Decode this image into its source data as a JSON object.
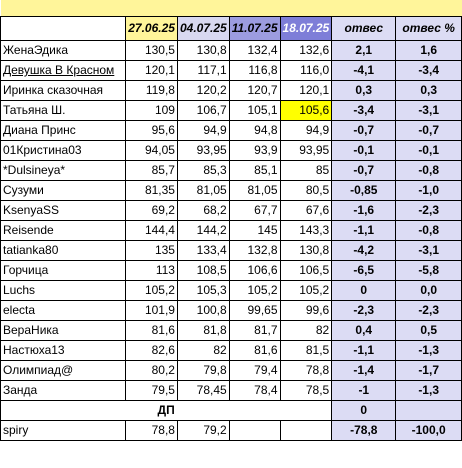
{
  "columns": {
    "date1": "27.06.25",
    "date2": "04.07.25",
    "date3": "11.07.25",
    "date4": "18.07.25",
    "otves": "отвес",
    "otves_pct": "отвес %"
  },
  "rows": [
    {
      "name": "ЖенаЭдика",
      "v1": "130,5",
      "v2": "130,8",
      "v3": "132,4",
      "v4": "132,6",
      "o": "2,1",
      "p": "1,6"
    },
    {
      "name": "Девушка В Красном",
      "v1": "120,1",
      "v2": "117,1",
      "v3": "116,8",
      "v4": "116,0",
      "o": "-4,1",
      "p": "-3,4"
    },
    {
      "name": "Иринка сказочная",
      "v1": "119,8",
      "v2": "120,2",
      "v3": "120,7",
      "v4": "120,1",
      "o": "0,3",
      "p": "0,3"
    },
    {
      "name": "Татьяна Ш.",
      "v1": "109",
      "v2": "106,7",
      "v3": "105,1",
      "v4": "105,6",
      "o": "-3,4",
      "p": "-3,1"
    },
    {
      "name": "Диана Принс",
      "v1": "95,6",
      "v2": "94,9",
      "v3": "94,8",
      "v4": "94,9",
      "o": "-0,7",
      "p": "-0,7"
    },
    {
      "name": "01Кристина03",
      "v1": "94,05",
      "v2": "93,95",
      "v3": "93,9",
      "v4": "93,95",
      "o": "-0,1",
      "p": "-0,1"
    },
    {
      "name": "*Dulsineya*",
      "v1": "85,7",
      "v2": "85,3",
      "v3": "85,1",
      "v4": "85",
      "o": "-0,7",
      "p": "-0,8"
    },
    {
      "name": "Сузуми",
      "v1": "81,35",
      "v2": "81,05",
      "v3": "81,05",
      "v4": "80,5",
      "o": "-0,85",
      "p": "-1,0"
    },
    {
      "name": "KsenyaSS",
      "v1": "69,2",
      "v2": "68,2",
      "v3": "67,7",
      "v4": "67,6",
      "o": "-1,6",
      "p": "-2,3"
    },
    {
      "name": "Reisende",
      "v1": "144,4",
      "v2": "144,2",
      "v3": "145",
      "v4": "143,3",
      "o": "-1,1",
      "p": "-0,8"
    },
    {
      "name": "tatianka80",
      "v1": "135",
      "v2": "133,4",
      "v3": "132,8",
      "v4": "130,8",
      "o": "-4,2",
      "p": "-3,1"
    },
    {
      "name": "Горчица",
      "v1": "113",
      "v2": "108,5",
      "v3": "106,6",
      "v4": "106,5",
      "o": "-6,5",
      "p": "-5,8"
    },
    {
      "name": "Luchs",
      "v1": "105,2",
      "v2": "105,3",
      "v3": "105,2",
      "v4": "105,2",
      "o": "0",
      "p": "0,0"
    },
    {
      "name": "electa",
      "v1": "101,9",
      "v2": "100,8",
      "v3": "99,65",
      "v4": "99,6",
      "o": "-2,3",
      "p": "-2,3"
    },
    {
      "name": "ВераНика",
      "v1": "81,6",
      "v2": "81,8",
      "v3": "81,7",
      "v4": "82",
      "o": "0,4",
      "p": "0,5"
    },
    {
      "name": "Настюха13",
      "v1": "82,6",
      "v2": "82",
      "v3": "81,6",
      "v4": "81,5",
      "o": "-1,1",
      "p": "-1,3"
    },
    {
      "name": "Олимпиад@",
      "v1": "80,2",
      "v2": "79,8",
      "v3": "79,4",
      "v4": "78,8",
      "o": "-1,4",
      "p": "-1,7"
    },
    {
      "name": "Занда",
      "v1": "79,5",
      "v2": "78,45",
      "v3": "78,4",
      "v4": "78,5",
      "o": "-1",
      "p": "-1,3"
    }
  ],
  "dp_row": {
    "label": "ДП",
    "o": "0"
  },
  "last_row": {
    "name": "spiry",
    "v1": "78,8",
    "v2": "79,2",
    "v3": "",
    "v4": "",
    "o": "-78,8",
    "p": "-100,0"
  },
  "colors": {
    "header_yellow": "#fff59a",
    "highlight_yellow": "#ffff00",
    "otves_bg": "#dcdcf4",
    "date3_bg": "#9c9ce0",
    "date4_bg": "#7e7ed8"
  }
}
